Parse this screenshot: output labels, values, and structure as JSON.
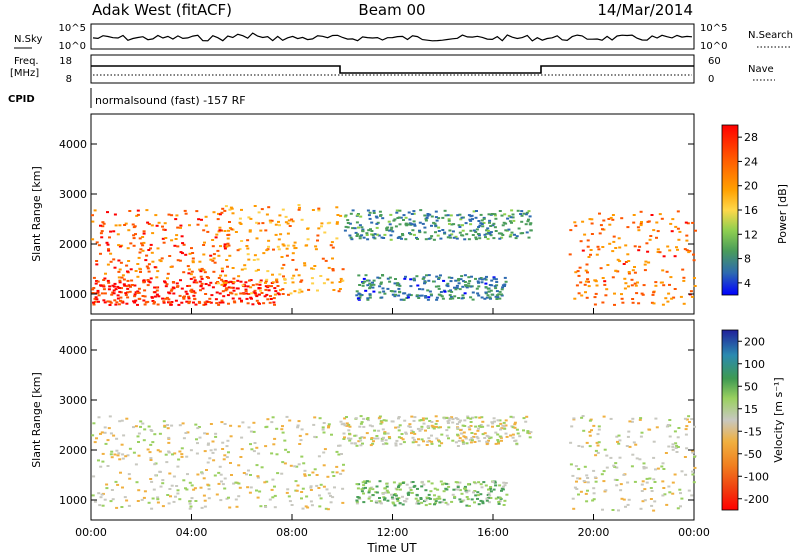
{
  "header": {
    "station": "Adak West (fitACF)",
    "beam": "Beam 00",
    "date": "14/Mar/2014"
  },
  "top_panels": {
    "nsky_label": "N.Sky",
    "nsky_ticks": [
      "10^5",
      "10^0"
    ],
    "nsearch_label": "N.Search",
    "nsearch_ticks": [
      "10^5",
      "10^0"
    ],
    "freq_label": "Freq.",
    "freq_unit": "[MHz]",
    "freq_ticks": [
      "18",
      "8"
    ],
    "nave_label": "Nave",
    "nave_ticks": [
      "60",
      "0"
    ],
    "cpid_label": "CPID",
    "cpid_text": "normalsound (fast) -157 RF"
  },
  "chart_data": [
    {
      "type": "heatmap",
      "name": "power",
      "ylabel": "Slant Range [km]",
      "yticks": [
        "1000",
        "2000",
        "3000",
        "4000"
      ],
      "ylim": [
        600,
        4600
      ],
      "xlim_hours": [
        0,
        24
      ],
      "colorbar_label": "Power [dB]",
      "colorbar_ticks": [
        "28",
        "24",
        "20",
        "16",
        "12",
        "8",
        "4"
      ],
      "colorbar_colors": [
        "#ff0000",
        "#ff5500",
        "#ff9a00",
        "#ffd24a",
        "#8ccf4a",
        "#4a9c5a",
        "#2d6ab0",
        "#0000ff"
      ],
      "regions": [
        {
          "t0": 0.0,
          "t1": 7.5,
          "r0": 800,
          "r1": 1300,
          "level": 0.95
        },
        {
          "t0": 0.0,
          "t1": 5.5,
          "r0": 1300,
          "r1": 2700,
          "level": 0.85
        },
        {
          "t0": 5.0,
          "t1": 10.0,
          "r0": 1000,
          "r1": 2800,
          "level": 0.7
        },
        {
          "t0": 10.0,
          "t1": 17.5,
          "r0": 2100,
          "r1": 2700,
          "level": 0.25
        },
        {
          "t0": 10.5,
          "t1": 16.5,
          "r0": 900,
          "r1": 1400,
          "level": 0.2
        },
        {
          "t0": 19.0,
          "t1": 24.0,
          "r0": 800,
          "r1": 2700,
          "level": 0.8
        }
      ]
    },
    {
      "type": "heatmap",
      "name": "velocity",
      "xlabel": "Time UT",
      "xticks": [
        "00:00",
        "04:00",
        "08:00",
        "12:00",
        "16:00",
        "20:00",
        "00:00"
      ],
      "ylabel": "Slant Range [km]",
      "yticks": [
        "1000",
        "2000",
        "3000",
        "4000"
      ],
      "ylim": [
        600,
        4600
      ],
      "xlim_hours": [
        0,
        24
      ],
      "colorbar_label": "Velocity [m s⁻¹]",
      "colorbar_ticks": [
        "200",
        "100",
        "50",
        "15",
        "-15",
        "-50",
        "-100",
        "-200"
      ],
      "colorbar_colors": [
        "#2a2aa0",
        "#2a8ab0",
        "#4aa05a",
        "#9ad060",
        "#c8c8c0",
        "#f0b040",
        "#f08020",
        "#f04010",
        "#ff0000"
      ],
      "regions": [
        {
          "t0": 0.0,
          "t1": 10.0,
          "r0": 800,
          "r1": 2700,
          "level": 0.5
        },
        {
          "t0": 10.0,
          "t1": 17.5,
          "r0": 2100,
          "r1": 2700,
          "level": 0.5
        },
        {
          "t0": 10.5,
          "t1": 16.5,
          "r0": 900,
          "r1": 1400,
          "level": 0.65
        },
        {
          "t0": 19.0,
          "t1": 24.0,
          "r0": 800,
          "r1": 2700,
          "level": 0.5
        }
      ]
    }
  ]
}
